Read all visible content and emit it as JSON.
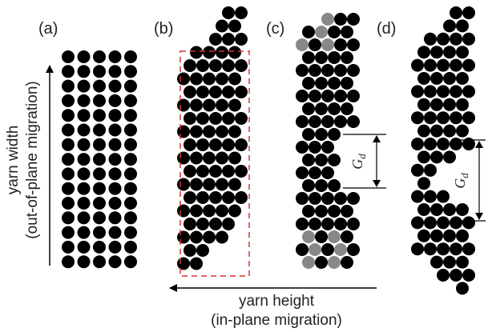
{
  "panels": [
    {
      "label": "(a)"
    },
    {
      "label": "(b)"
    },
    {
      "label": "(c)"
    },
    {
      "label": "(d)"
    }
  ],
  "axes": {
    "vertical": {
      "label": "yarn width",
      "sublabel": "(out-of-plane migration)"
    },
    "horizontal": {
      "label": "yarn height",
      "sublabel": "(in-plane migration)"
    }
  },
  "gaps": [
    {
      "symbol": "G",
      "subscript": "d"
    },
    {
      "symbol": "G",
      "subscript": "d"
    }
  ]
}
